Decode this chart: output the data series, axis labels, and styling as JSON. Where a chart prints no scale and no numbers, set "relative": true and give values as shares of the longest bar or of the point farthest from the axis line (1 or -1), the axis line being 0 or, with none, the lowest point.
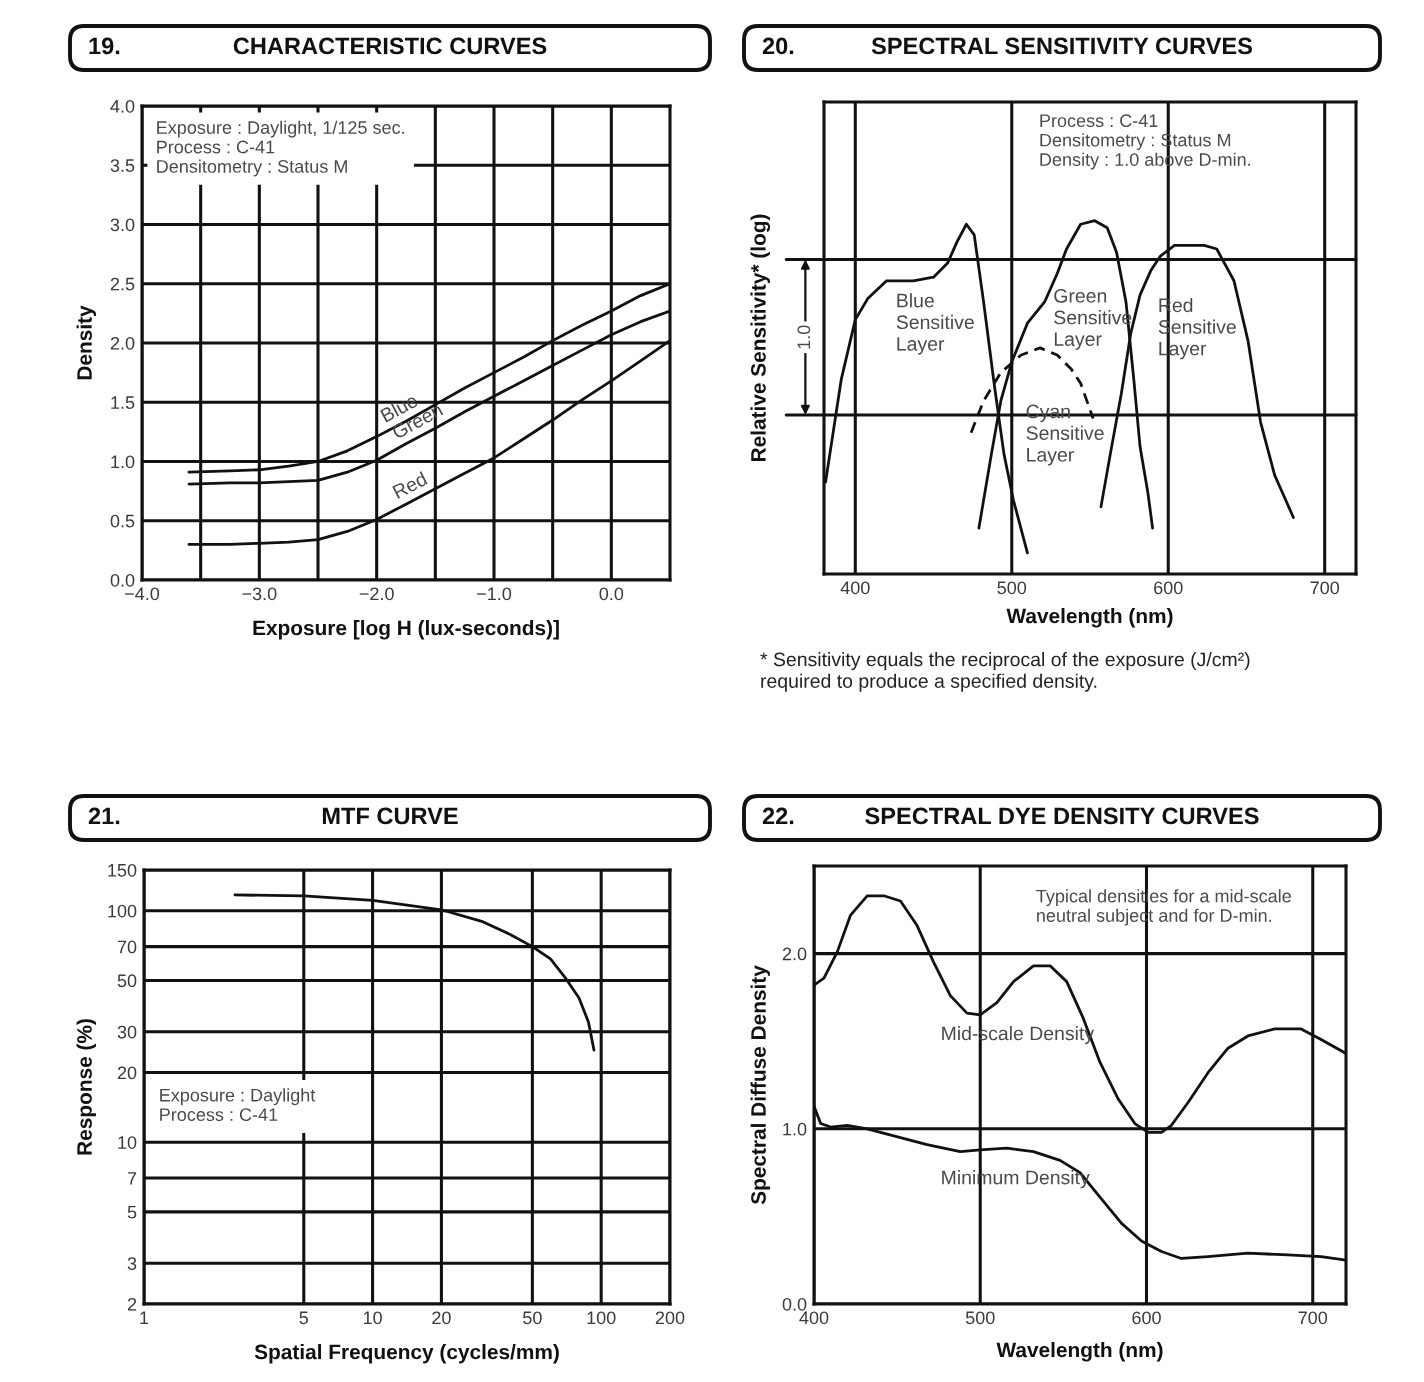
{
  "chart_data": [
    {
      "type": "line",
      "title": "CHARACTERISTIC CURVES",
      "subtitle": "19.",
      "xlabel": "Exposure [log H (lux-seconds)]",
      "ylabel": "Density",
      "annotations": [
        "Exposure : Daylight, 1/125 sec.\nProcess : C-41\nDensitometry : Status M"
      ],
      "x": [
        -3.6,
        -3.25,
        -3.0,
        -2.75,
        -2.5,
        -2.25,
        -2.0,
        -1.75,
        -1.5,
        -1.25,
        -1.0,
        -0.75,
        -0.5,
        -0.25,
        0.0,
        0.25,
        0.5
      ],
      "series": [
        {
          "name": "Blue",
          "color": "#111111",
          "values": [
            0.91,
            0.92,
            0.93,
            0.96,
            1.0,
            1.09,
            1.21,
            1.34,
            1.48,
            1.62,
            1.75,
            1.88,
            2.02,
            2.15,
            2.27,
            2.4,
            2.5
          ]
        },
        {
          "name": "Green",
          "color": "#111111",
          "values": [
            0.81,
            0.82,
            0.82,
            0.83,
            0.84,
            0.91,
            1.01,
            1.15,
            1.28,
            1.42,
            1.55,
            1.68,
            1.81,
            1.94,
            2.07,
            2.18,
            2.27
          ]
        },
        {
          "name": "Red",
          "color": "#111111",
          "values": [
            0.3,
            0.3,
            0.31,
            0.32,
            0.34,
            0.41,
            0.51,
            0.64,
            0.77,
            0.9,
            1.03,
            1.19,
            1.35,
            1.52,
            1.68,
            1.85,
            2.02
          ]
        }
      ],
      "xlim": [
        -4.0,
        0.5
      ],
      "xticks": [
        {
          "value": -4.0,
          "label": "−4.0"
        },
        {
          "value": -3.5,
          "label": null
        },
        {
          "value": -3.0,
          "label": "−3.0"
        },
        {
          "value": -2.5,
          "label": null
        },
        {
          "value": -2.0,
          "label": "−2.0"
        },
        {
          "value": -1.5,
          "label": null
        },
        {
          "value": -1.0,
          "label": "−1.0"
        },
        {
          "value": -0.5,
          "label": null
        },
        {
          "value": 0.0,
          "label": "0.0"
        }
      ],
      "ylim": [
        0.0,
        4.0
      ],
      "yticks": [
        {
          "value": 0.0,
          "label": "0.0"
        },
        0.5,
        {
          "value": 1.0,
          "label": "1.0"
        },
        1.5,
        {
          "value": 2.0,
          "label": "2.0"
        },
        2.5,
        {
          "value": 3.0,
          "label": "3.0"
        },
        3.5,
        {
          "value": 4.0,
          "label": "4.0"
        }
      ],
      "grid": true
    },
    {
      "type": "line",
      "title": "SPECTRAL SENSITIVITY CURVES",
      "subtitle": "20.",
      "xlabel": "Wavelength (nm)",
      "ylabel": "Relative Sensitivity* (log)",
      "annotations": [
        "Process : C-41\nDensitometry : Status M\nDensity : 1.0 above D-min.",
        "* Sensitivity equals the reciprocal of the exposure (J/cm²)\nrequired to produce a specified density.",
        "1.0"
      ],
      "relative": true,
      "series": [
        {
          "name": "Blue\nSensitive\nLayer",
          "color": "#111111",
          "x": [
            381,
            391,
            400,
            408,
            420,
            437,
            450,
            459,
            465,
            471,
            476,
            482,
            489,
            495,
            501,
            510
          ],
          "values": [
            0.26,
            0.55,
            0.72,
            0.78,
            0.83,
            0.83,
            0.84,
            0.88,
            0.94,
            0.99,
            0.96,
            0.77,
            0.53,
            0.34,
            0.21,
            0.06
          ]
        },
        {
          "name": "Green\nSensitive\nLayer",
          "color": "#111111",
          "x": [
            479,
            487,
            493,
            500,
            510,
            521,
            529,
            535,
            544,
            553,
            561,
            567,
            573,
            578,
            582,
            587,
            590
          ],
          "values": [
            0.13,
            0.34,
            0.49,
            0.6,
            0.71,
            0.77,
            0.85,
            0.92,
            0.99,
            1.0,
            0.98,
            0.91,
            0.77,
            0.55,
            0.36,
            0.23,
            0.13
          ]
        },
        {
          "name": "Cyan\nSensitive\nLayer",
          "color": "#111111",
          "line_style": "dashed",
          "x": [
            474,
            482,
            493,
            506,
            518,
            529,
            538,
            544,
            548,
            552
          ],
          "values": [
            0.4,
            0.49,
            0.57,
            0.62,
            0.64,
            0.62,
            0.58,
            0.54,
            0.49,
            0.44
          ]
        },
        {
          "name": "Red\nSensitive\nLayer",
          "color": "#111111",
          "x": [
            557,
            563,
            570,
            576,
            582,
            589,
            595,
            604,
            612,
            623,
            631,
            642,
            651,
            659,
            668,
            674,
            680
          ],
          "values": [
            0.19,
            0.34,
            0.51,
            0.68,
            0.79,
            0.86,
            0.9,
            0.93,
            0.93,
            0.93,
            0.92,
            0.83,
            0.66,
            0.43,
            0.28,
            0.22,
            0.16
          ]
        }
      ],
      "ref_lines": [
        {
          "axis": "y",
          "value": 0.89
        },
        {
          "axis": "y",
          "value": 0.45
        }
      ],
      "xlim": [
        380,
        720
      ],
      "xticks": [
        400,
        500,
        600,
        700
      ],
      "grid": "x"
    },
    {
      "type": "line",
      "title": "MTF CURVE",
      "subtitle": "21.",
      "xlabel": "Spatial Frequency (cycles/mm)",
      "ylabel": "Response (%)",
      "annotations": [
        "Exposure : Daylight\nProcess : C-41"
      ],
      "x": [
        2.5,
        5,
        10,
        20,
        30,
        40,
        50,
        60,
        70,
        80,
        88,
        93
      ],
      "series": [
        {
          "color": "#111111",
          "values": [
            117,
            116,
            111,
            101,
            90,
            79,
            70,
            62,
            51,
            42,
            33,
            25
          ]
        }
      ],
      "log": "xy",
      "xlim": [
        1,
        200
      ],
      "xticks": [
        1,
        5,
        10,
        20,
        50,
        100,
        200
      ],
      "ylim": [
        2,
        150
      ],
      "yticks": [
        2,
        3,
        5,
        7,
        10,
        20,
        30,
        50,
        70,
        100,
        150
      ],
      "grid": true
    },
    {
      "type": "line",
      "title": "SPECTRAL DYE DENSITY CURVES",
      "subtitle": "22.",
      "xlabel": "Wavelength (nm)",
      "ylabel": "Spectral Diffuse Density",
      "annotations": [
        "Typical densities for a mid-scale\nneutral subject and for D-min."
      ],
      "series": [
        {
          "name": "Mid-scale Density",
          "color": "#111111",
          "x": [
            400,
            406,
            414,
            422,
            432,
            442,
            452,
            462,
            472,
            482,
            492,
            500,
            510,
            520,
            532,
            542,
            552,
            562,
            572,
            583,
            593,
            601,
            609,
            615,
            625,
            637,
            649,
            661,
            677,
            693,
            705,
            720
          ],
          "values": [
            1.82,
            1.86,
            2.01,
            2.22,
            2.33,
            2.33,
            2.3,
            2.16,
            1.95,
            1.76,
            1.66,
            1.65,
            1.72,
            1.84,
            1.93,
            1.93,
            1.84,
            1.63,
            1.38,
            1.17,
            1.03,
            0.98,
            0.98,
            1.02,
            1.15,
            1.32,
            1.46,
            1.53,
            1.57,
            1.57,
            1.51,
            1.43
          ]
        },
        {
          "name": "Minimum Density",
          "color": "#111111",
          "x": [
            400,
            404,
            410,
            420,
            432,
            448,
            468,
            488,
            500,
            516,
            532,
            548,
            560,
            572,
            585,
            597,
            609,
            621,
            637,
            661,
            685,
            705,
            720
          ],
          "values": [
            1.13,
            1.03,
            1.01,
            1.02,
            1.0,
            0.96,
            0.91,
            0.87,
            0.88,
            0.89,
            0.87,
            0.82,
            0.75,
            0.61,
            0.46,
            0.36,
            0.3,
            0.26,
            0.27,
            0.29,
            0.28,
            0.27,
            0.25
          ]
        }
      ],
      "xlim": [
        400,
        720
      ],
      "xticks": [
        400,
        500,
        600,
        700
      ],
      "ylim": [
        0.0,
        2.5
      ],
      "yticks": [
        {
          "value": 0.0,
          "label": "0.0"
        },
        {
          "value": 1.0,
          "label": "1.0"
        },
        {
          "value": 2.0,
          "label": "2.0"
        }
      ],
      "grid": true
    }
  ]
}
